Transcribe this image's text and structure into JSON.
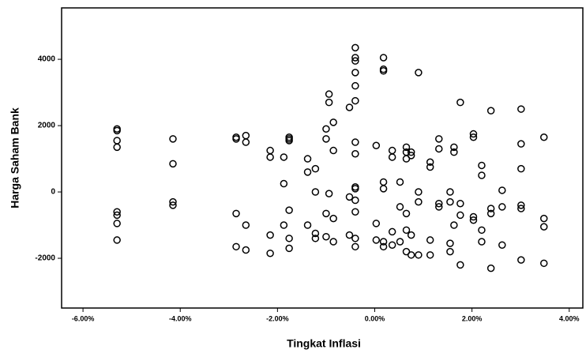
{
  "chart_data": {
    "type": "scatter",
    "x_label": "Tingkat Inflasi",
    "y_label": "Harga Saham Bank",
    "x": [
      -5.3,
      -5.3,
      -5.3,
      -5.3,
      -5.3,
      -5.3,
      -5.3,
      -5.3,
      -4.15,
      -4.15,
      -4.15,
      -4.15,
      -2.85,
      -2.85,
      -2.85,
      -2.85,
      -2.65,
      -2.65,
      -2.65,
      -2.65,
      -2.15,
      -2.15,
      -2.15,
      -2.15,
      -1.87,
      -1.87,
      -1.87,
      -1.76,
      -1.76,
      -1.76,
      -1.76,
      -1.76,
      -1.76,
      -1.38,
      -1.38,
      -1.38,
      -1.22,
      -1.22,
      -1.22,
      -1.22,
      -1.0,
      -1.0,
      -1.0,
      -1.0,
      -0.94,
      -0.94,
      -0.94,
      -0.85,
      -0.85,
      -0.85,
      -0.85,
      -0.52,
      -0.52,
      -0.52,
      -0.4,
      -0.4,
      -0.4,
      -0.4,
      -0.4,
      -0.4,
      -0.4,
      -0.4,
      -0.4,
      -0.4,
      -0.4,
      -0.4,
      -0.4,
      -0.4,
      0.03,
      0.03,
      0.03,
      0.18,
      0.18,
      0.18,
      0.18,
      0.18,
      0.18,
      0.18,
      0.36,
      0.36,
      0.36,
      0.36,
      0.52,
      0.52,
      0.52,
      0.65,
      0.65,
      0.65,
      0.65,
      0.65,
      0.65,
      0.75,
      0.75,
      0.75,
      0.75,
      0.9,
      0.9,
      0.9,
      0.9,
      1.14,
      1.14,
      1.14,
      1.14,
      1.32,
      1.32,
      1.32,
      1.32,
      1.55,
      1.55,
      1.55,
      1.55,
      1.63,
      1.63,
      1.63,
      1.76,
      1.76,
      1.76,
      1.76,
      2.03,
      2.03,
      2.03,
      2.03,
      2.2,
      2.2,
      2.2,
      2.2,
      2.39,
      2.39,
      2.39,
      2.39,
      2.62,
      2.62,
      2.62,
      3.01,
      3.01,
      3.01,
      3.01,
      3.01,
      3.01,
      3.48,
      3.48,
      3.48,
      3.48
    ],
    "y": [
      1900,
      1850,
      1550,
      1350,
      -600,
      -700,
      -950,
      -1450,
      1600,
      850,
      -300,
      -400,
      1650,
      1600,
      -650,
      -1650,
      1700,
      1500,
      -1000,
      -1750,
      1250,
      1050,
      -1300,
      -1850,
      1050,
      250,
      -1000,
      1650,
      1600,
      1550,
      -550,
      -1400,
      -1700,
      1000,
      600,
      -1000,
      700,
      0,
      -1250,
      -1400,
      1900,
      1600,
      -650,
      -1350,
      2950,
      2700,
      -50,
      2100,
      1250,
      -800,
      -1500,
      2550,
      -1300,
      -150,
      4350,
      4050,
      3950,
      3600,
      3200,
      2750,
      1500,
      1150,
      150,
      100,
      -250,
      -600,
      -1400,
      -1650,
      1400,
      -950,
      -1450,
      4050,
      3700,
      3650,
      300,
      100,
      -1500,
      -1650,
      1250,
      1050,
      -1200,
      -1600,
      300,
      -450,
      -1500,
      1350,
      1200,
      1000,
      -650,
      -1150,
      -1800,
      1200,
      1100,
      -1300,
      -1900,
      3600,
      0,
      -300,
      -1900,
      900,
      750,
      -1450,
      -1900,
      1600,
      1300,
      -350,
      -450,
      0,
      -300,
      -1550,
      -1800,
      1350,
      1200,
      -1000,
      2700,
      -350,
      -700,
      -2200,
      1750,
      1650,
      -750,
      -850,
      800,
      500,
      -1150,
      -1500,
      2450,
      -500,
      -650,
      -2300,
      50,
      -450,
      -1600,
      2500,
      1450,
      700,
      -400,
      -500,
      -2050,
      1650,
      -800,
      -1050,
      -2150
    ],
    "color": "#000000",
    "xlim": [
      -6.44,
      4.28
    ],
    "xticks": [
      {
        "value": -6,
        "label": "-6.00%"
      },
      {
        "value": -4,
        "label": "-4.00%"
      },
      {
        "value": -2,
        "label": "-2.00%"
      },
      {
        "value": 0,
        "label": "0.00%"
      },
      {
        "value": 2,
        "label": "2.00%"
      },
      {
        "value": 4,
        "label": "4.00%"
      }
    ],
    "ylim": [
      -3500,
      5550
    ],
    "yticks": [
      -2000,
      0,
      2000,
      4000
    ]
  }
}
